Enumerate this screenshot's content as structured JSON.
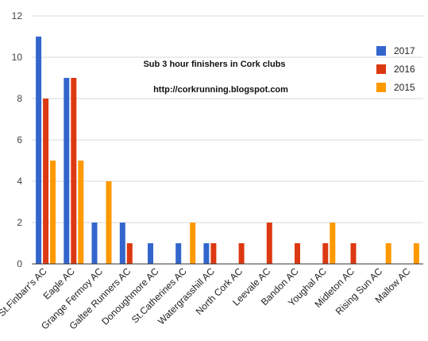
{
  "chart_data": {
    "type": "bar",
    "annotations": [
      "Sub 3 hour finishers in Cork clubs",
      "http://corkrunning.blogspot.com"
    ],
    "categories": [
      "St.Finbarr's AC",
      "Eagle AC",
      "Grange Fermoy AC",
      "Galtee Runners AC",
      "Donoughmore AC",
      "St.Catherines AC",
      "Watergrasshill AC",
      "North Cork AC",
      "Leevale AC",
      "Bandon AC",
      "Youghal AC",
      "Midleton AC",
      "Rising Sun AC",
      "Mallow AC"
    ],
    "series": [
      {
        "name": "2017",
        "color": "#3366cc",
        "values": [
          11,
          9,
          2,
          2,
          1,
          1,
          1,
          0,
          0,
          0,
          0,
          0,
          0,
          0
        ]
      },
      {
        "name": "2016",
        "color": "#dc3912",
        "values": [
          8,
          9,
          0,
          1,
          0,
          0,
          1,
          1,
          2,
          1,
          1,
          1,
          0,
          0
        ]
      },
      {
        "name": "2015",
        "color": "#ff9900",
        "values": [
          5,
          5,
          4,
          0,
          0,
          2,
          0,
          0,
          0,
          0,
          2,
          0,
          1,
          1
        ]
      }
    ],
    "ylim": [
      0,
      12
    ],
    "yticks": [
      0,
      2,
      4,
      6,
      8,
      10,
      12
    ],
    "grid": true,
    "legend_position": "right"
  }
}
